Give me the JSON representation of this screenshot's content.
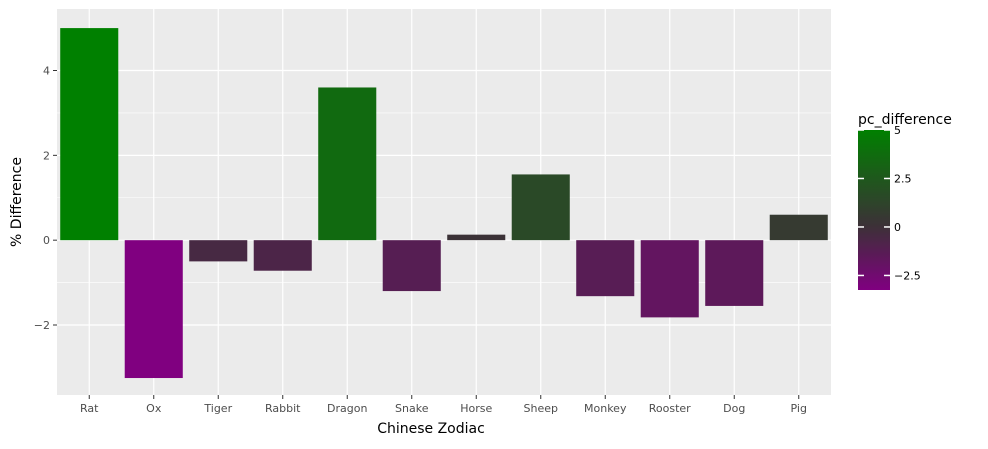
{
  "chart_data": {
    "type": "bar",
    "title": "",
    "xlabel": "Chinese Zodiac",
    "ylabel": "% Difference",
    "categories": [
      "Rat",
      "Ox",
      "Tiger",
      "Rabbit",
      "Dragon",
      "Snake",
      "Horse",
      "Sheep",
      "Monkey",
      "Rooster",
      "Dog",
      "Pig"
    ],
    "values": [
      5.0,
      -3.25,
      -0.5,
      -0.72,
      3.6,
      -1.2,
      0.13,
      1.55,
      -1.32,
      -1.82,
      -1.55,
      0.6
    ],
    "ylim": [
      -3.65,
      5.45
    ],
    "y_ticks": [
      -2,
      0,
      2,
      4
    ],
    "y_tick_labels": [
      "−2",
      "0",
      "2",
      "4"
    ],
    "grid": true,
    "legend": {
      "title": "pc_difference",
      "placement": "right",
      "type": "colorbar",
      "range": [
        -3.25,
        5.0
      ],
      "ticks": [
        -2.5,
        0,
        2.5,
        5
      ],
      "tick_labels": [
        "−2.5",
        "0",
        "2.5",
        "5"
      ],
      "colors": {
        "low": "#800080",
        "mid": "#3d3038",
        "high": "#008000"
      }
    },
    "colors": {
      "panel_bg": "#ebebeb",
      "grid_major": "#ffffff",
      "text": "#000000",
      "tick_text": "#4d4d4d"
    }
  }
}
